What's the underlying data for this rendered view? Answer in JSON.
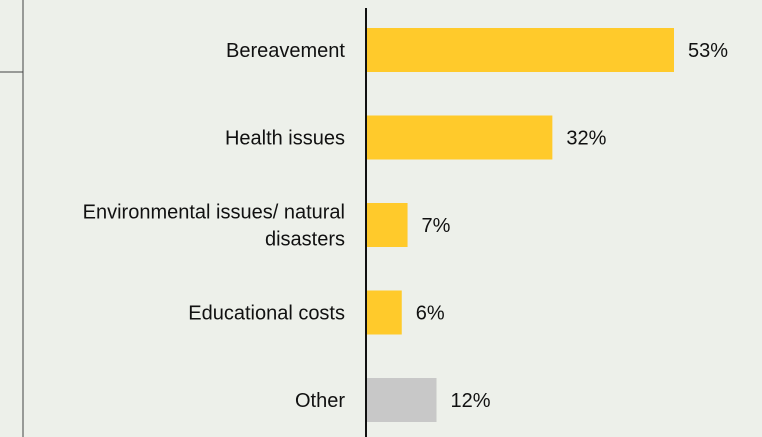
{
  "chart_data": {
    "type": "bar",
    "orientation": "horizontal",
    "categories": [
      "Bereavement",
      "Health issues",
      "Environmental issues/ natural disasters",
      "Educational costs",
      "Other"
    ],
    "category_lines": [
      [
        "Bereavement"
      ],
      [
        "Health issues"
      ],
      [
        "Environmental issues/ natural",
        "disasters"
      ],
      [
        "Educational costs"
      ],
      [
        "Other"
      ]
    ],
    "values": [
      53,
      32,
      7,
      6,
      12
    ],
    "value_labels": [
      "53%",
      "32%",
      "7%",
      "6%",
      "12%"
    ],
    "unit": "%",
    "bar_colors": [
      "#ffca2b",
      "#ffca2b",
      "#ffca2b",
      "#ffca2b",
      "#c8c8c8"
    ],
    "grid": false,
    "legend": "none",
    "xlim": [
      0,
      60
    ]
  }
}
